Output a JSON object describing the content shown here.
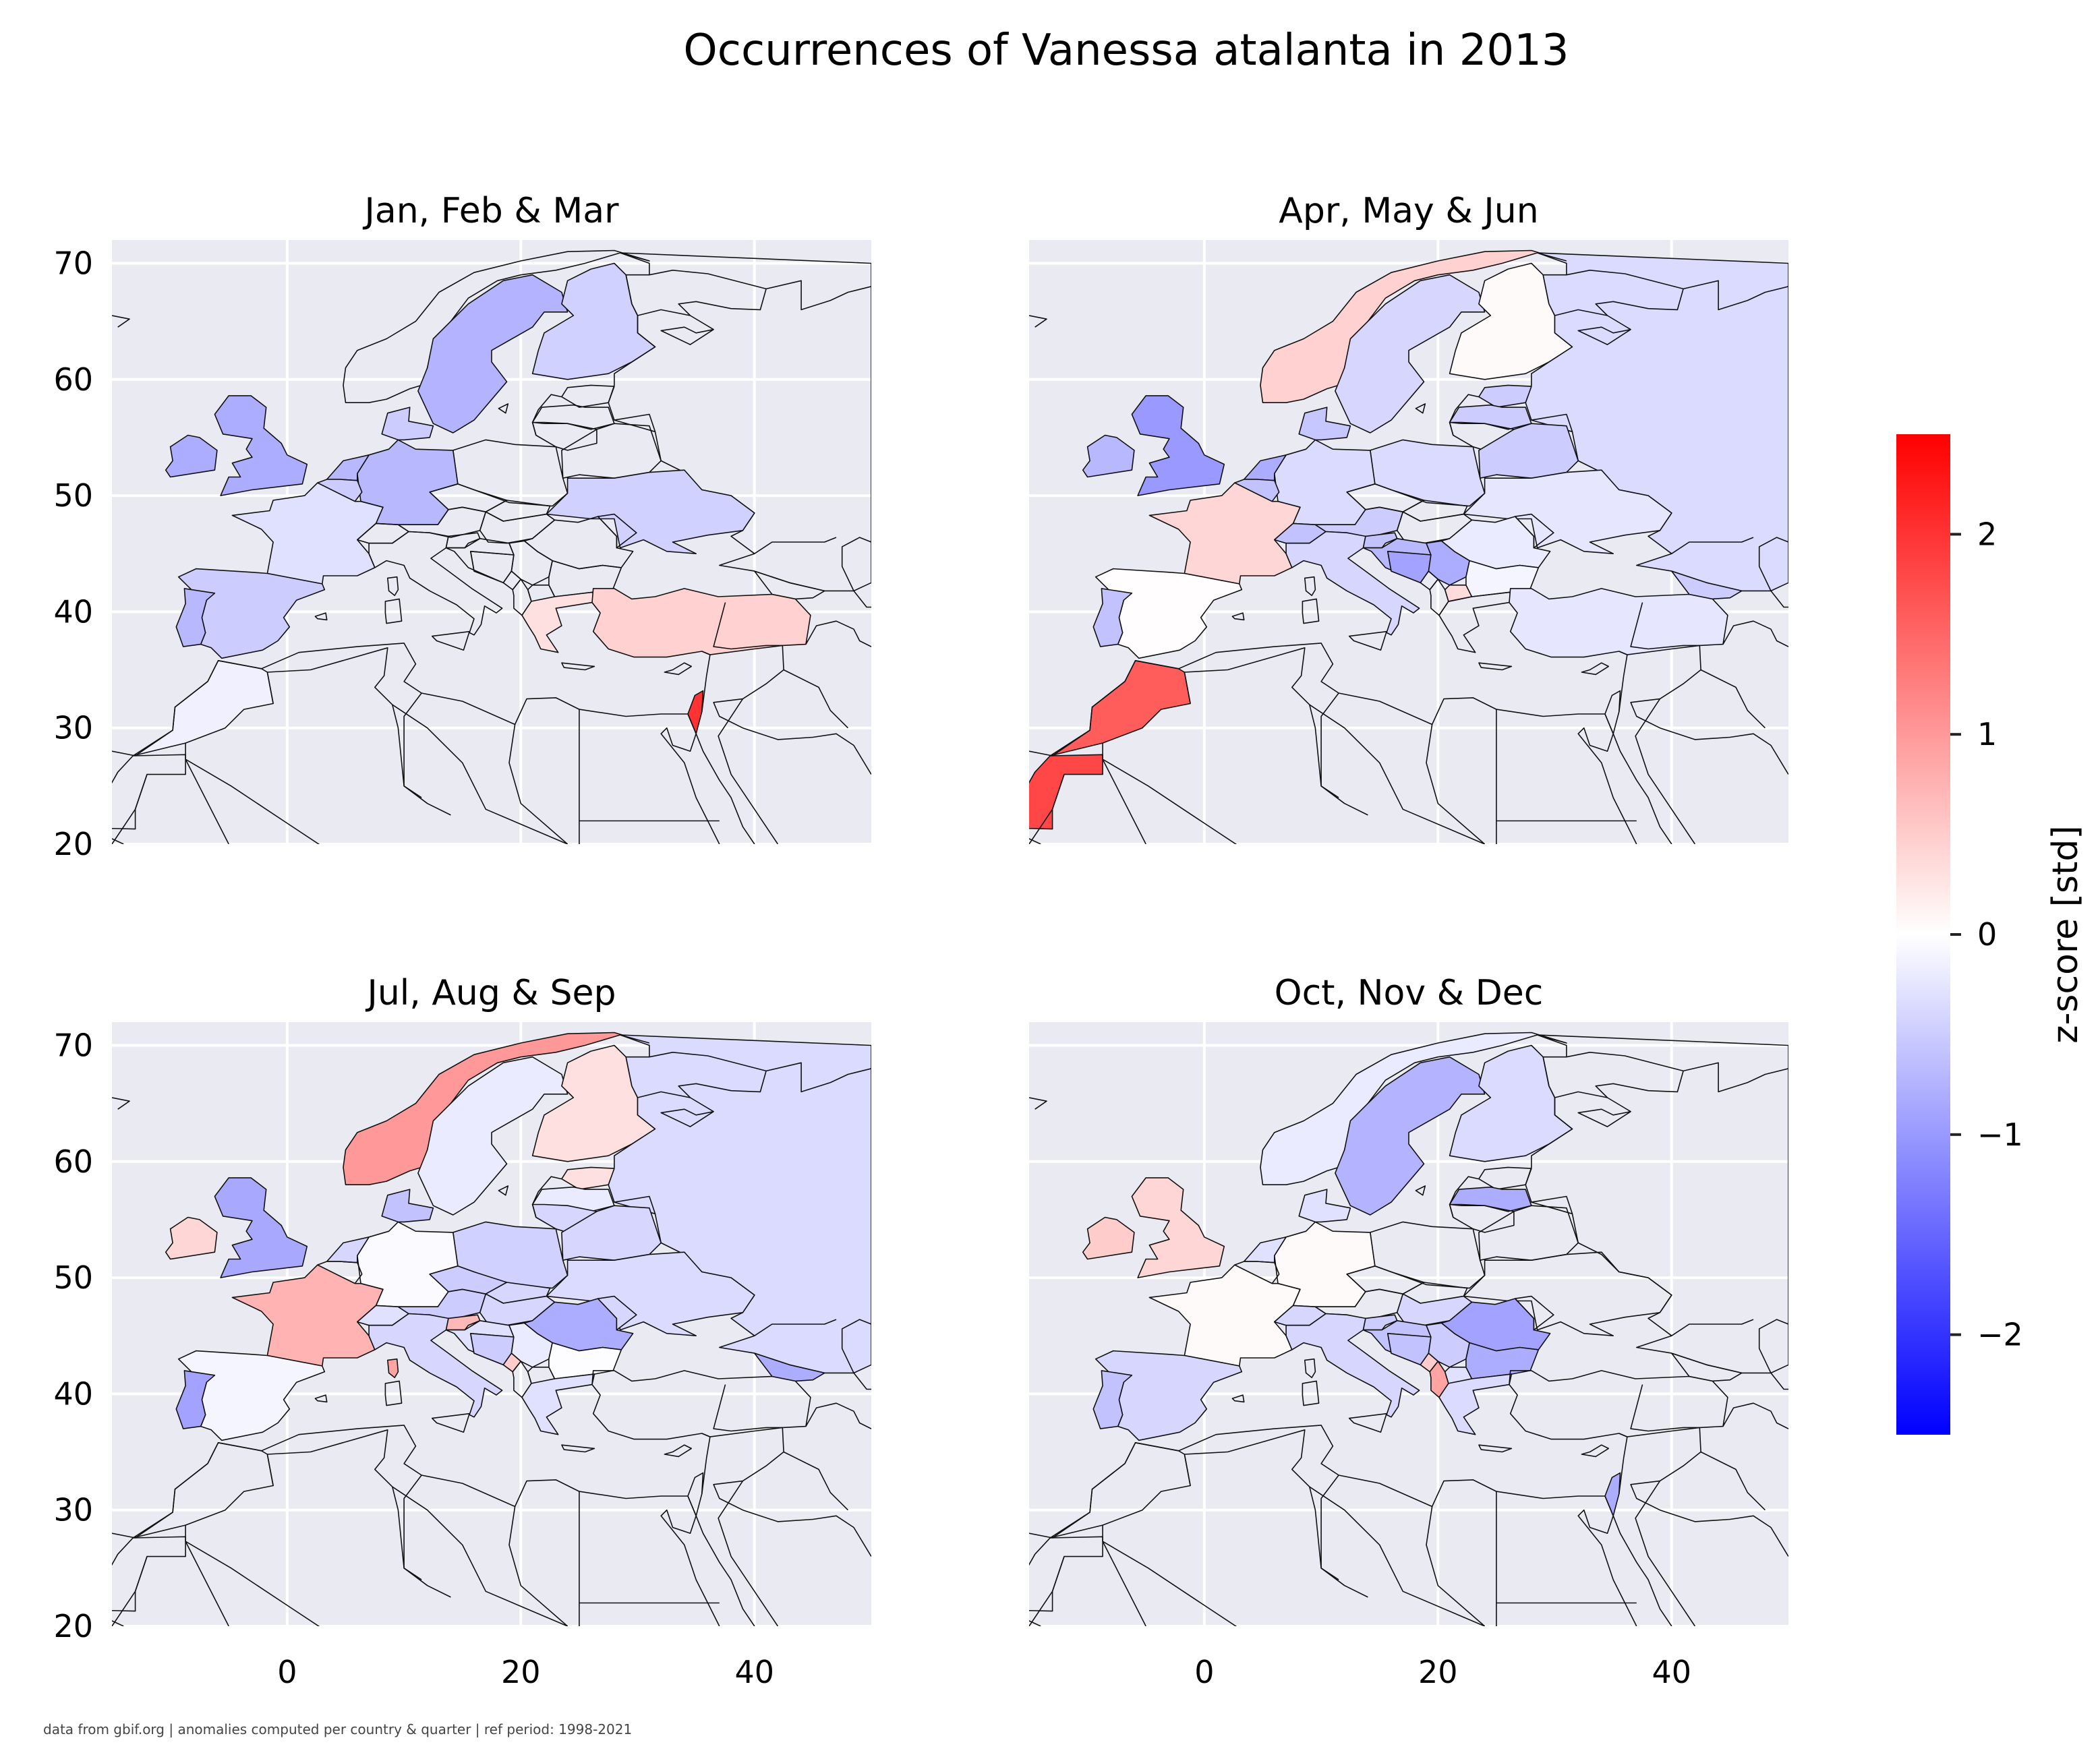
{
  "figure": {
    "title": "Occurrences of Vanessa atalanta in 2013",
    "footer": "data from gbif.org | anomalies computed per country & quarter | ref period: 1998-2021"
  },
  "colors": {
    "negative": "#0000ff",
    "neutral": "#ffffff",
    "positive": "#ff0000",
    "axes_background": "#eaeaf2",
    "border_lines": "#111111",
    "grid": "#ffffff"
  },
  "chart_data": {
    "type": "heatmap",
    "subtype": "choropleth map",
    "value_name": "z-score [std]",
    "x_ticks": [
      0,
      20,
      40
    ],
    "y_ticks": [
      20,
      30,
      40,
      50,
      60,
      70
    ],
    "xlim": [
      -15,
      50
    ],
    "ylim": [
      20,
      72
    ],
    "grid": true,
    "colorbar": {
      "label": "z-score [std]",
      "range": [
        -2.5,
        2.5
      ],
      "ticks": [
        2,
        1,
        0,
        -1,
        -2
      ],
      "tick_labels": [
        "2",
        "1",
        "0",
        "−1",
        "−2"
      ],
      "colormap": "bwr",
      "position": "right"
    },
    "panels": [
      {
        "title": "Jan, Feb & Mar",
        "values": {
          "Norway": null,
          "Sweden": -0.75,
          "Finland": -0.45,
          "Denmark": -0.5,
          "United Kingdom": -0.8,
          "Ireland": -0.8,
          "Germany": -0.7,
          "Netherlands": -0.7,
          "Belgium": -0.5,
          "France": -0.3,
          "Spain": -0.5,
          "Portugal": -0.7,
          "Morocco": -0.15,
          "Ukraine": -0.45,
          "Turkey": 0.45,
          "Greece": 0.3,
          "Israel": 2.0
        }
      },
      {
        "title": "Apr, May & Jun",
        "values": {
          "Norway": 0.45,
          "Sweden": -0.4,
          "Finland": 0.05,
          "Russia": -0.35,
          "Estonia": -0.5,
          "Latvia": -0.5,
          "Belarus": -0.5,
          "Poland": -0.35,
          "Denmark": -0.55,
          "United Kingdom": -1.0,
          "Ireland": -0.7,
          "Netherlands": -0.8,
          "Belgium": -0.6,
          "Germany": -0.35,
          "France": 0.4,
          "Switzerland": -0.6,
          "Austria": -0.5,
          "Italy": -0.4,
          "Slovenia": -0.6,
          "Croatia": -0.7,
          "Bosnia and Herzegovina": -0.9,
          "Serbia": -0.8,
          "Bulgaria": -0.1,
          "North Macedonia": 0.35,
          "Spain": 0.02,
          "Portugal": -0.6,
          "Morocco": 1.6,
          "Western Sahara": 1.8,
          "Ukraine": -0.25,
          "Turkey": -0.25,
          "Romania": -0.2,
          "Georgia": -0.5
        }
      },
      {
        "title": "Jul, Aug & Sep",
        "values": {
          "Norway": 1.0,
          "Sweden": -0.2,
          "Finland": 0.3,
          "Russia": -0.35,
          "Estonia": 0.3,
          "Latvia": -0.2,
          "Lithuania": -0.4,
          "Belarus": -0.4,
          "Poland": -0.45,
          "Denmark": -0.6,
          "United Kingdom": -0.85,
          "Ireland": 0.4,
          "Netherlands": -0.4,
          "Germany": -0.05,
          "France": 0.75,
          "Czechia": -0.5,
          "Austria": -0.5,
          "Slovakia": -0.4,
          "Hungary": -0.4,
          "Switzerland": -0.3,
          "Italy": -0.4,
          "Slovenia": 0.7,
          "Croatia": -0.3,
          "Bosnia and Herzegovina": -0.5,
          "Serbia": -0.2,
          "Montenegro": 0.5,
          "Romania": -0.8,
          "Moldova": -0.4,
          "Bulgaria": -0.02,
          "Greece": -0.3,
          "Spain": -0.1,
          "Portugal": -0.9,
          "Ukraine": -0.35,
          "Georgia": -0.8,
          "Corsica": 0.9
        }
      },
      {
        "title": "Oct, Nov & Dec",
        "values": {
          "Norway": -0.2,
          "Sweden": -0.75,
          "Finland": -0.35,
          "Latvia": -0.8,
          "Denmark": -0.3,
          "United Kingdom": 0.4,
          "Ireland": 0.5,
          "Netherlands": -0.3,
          "Germany": 0.05,
          "France": 0.05,
          "Switzerland": -0.4,
          "Italy": -0.4,
          "Slovenia": -0.5,
          "Croatia": -0.6,
          "Bosnia and Herzegovina": -0.6,
          "Montenegro": 0.5,
          "Albania": 0.9,
          "North Macedonia": -0.3,
          "Serbia": -0.5,
          "Bulgaria": -0.8,
          "Romania": -0.9,
          "Greece": -0.35,
          "Spain": -0.4,
          "Portugal": -0.6,
          "Hungary": -0.4,
          "Israel": -0.8
        }
      }
    ]
  }
}
